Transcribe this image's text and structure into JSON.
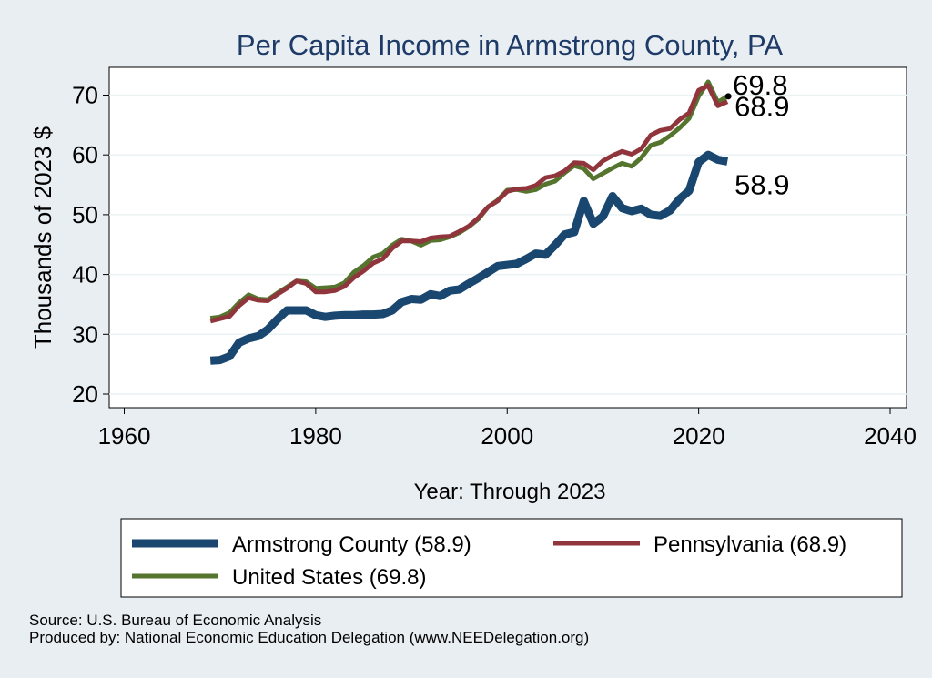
{
  "chart_data": {
    "type": "line",
    "title": "Per Capita Income in Armstrong County, PA",
    "xlabel": "Year: Through 2023",
    "ylabel": "Thousands of 2023 $",
    "xlim": [
      1960,
      2040
    ],
    "ylim": [
      20,
      75
    ],
    "x_ticks": [
      1960,
      1980,
      2000,
      2020,
      2040
    ],
    "y_ticks": [
      20,
      30,
      40,
      50,
      60,
      70
    ],
    "grid": "horizontal",
    "legend_position": "bottom",
    "x": [
      1969,
      1970,
      1971,
      1972,
      1973,
      1974,
      1975,
      1976,
      1977,
      1978,
      1979,
      1980,
      1981,
      1982,
      1983,
      1984,
      1985,
      1986,
      1987,
      1988,
      1989,
      1990,
      1991,
      1992,
      1993,
      1994,
      1995,
      1996,
      1997,
      1998,
      1999,
      2000,
      2001,
      2002,
      2003,
      2004,
      2005,
      2006,
      2007,
      2008,
      2009,
      2010,
      2011,
      2012,
      2013,
      2014,
      2015,
      2016,
      2017,
      2018,
      2019,
      2020,
      2021,
      2022,
      2023
    ],
    "series": [
      {
        "name": "Armstrong County (58.9)",
        "color": "#1a476f",
        "values": [
          25.6,
          25.7,
          26.3,
          28.6,
          29.3,
          29.7,
          30.8,
          32.5,
          34.0,
          34.0,
          34.0,
          33.2,
          32.9,
          33.1,
          33.2,
          33.2,
          33.3,
          33.3,
          33.4,
          34.0,
          35.4,
          35.9,
          35.8,
          36.7,
          36.4,
          37.3,
          37.5,
          38.5,
          39.4,
          40.4,
          41.4,
          41.6,
          41.8,
          42.6,
          43.5,
          43.3,
          44.9,
          46.7,
          47.1,
          52.3,
          48.5,
          49.7,
          53.1,
          51.1,
          50.6,
          51.0,
          50.0,
          49.8,
          50.7,
          52.6,
          54.0,
          58.8,
          60.0,
          59.2,
          58.9
        ],
        "end_label": "58.9"
      },
      {
        "name": "Pennsylvania (68.9)",
        "color": "#90353b",
        "values": [
          32.2,
          32.6,
          33.0,
          34.8,
          36.1,
          35.7,
          35.6,
          36.7,
          37.7,
          38.9,
          38.5,
          37.1,
          37.1,
          37.3,
          38.0,
          39.5,
          40.6,
          41.9,
          42.6,
          44.4,
          45.6,
          45.6,
          45.5,
          46.1,
          46.3,
          46.4,
          47.2,
          48.1,
          49.5,
          51.3,
          52.3,
          53.9,
          54.3,
          54.4,
          54.9,
          56.2,
          56.5,
          57.3,
          58.7,
          58.6,
          57.5,
          59.0,
          59.9,
          60.6,
          60.1,
          61.0,
          63.3,
          64.1,
          64.4,
          65.9,
          67.0,
          70.8,
          71.6,
          68.2,
          68.9
        ],
        "end_label": "68.9"
      },
      {
        "name": "United States (69.8)",
        "color": "#55752f",
        "values": [
          32.7,
          32.9,
          33.6,
          35.3,
          36.6,
          35.9,
          35.8,
          36.9,
          37.9,
          38.9,
          38.8,
          37.7,
          37.8,
          37.9,
          38.6,
          40.4,
          41.5,
          42.9,
          43.5,
          44.9,
          45.9,
          45.6,
          44.9,
          45.7,
          45.8,
          46.3,
          47.0,
          48.0,
          49.3,
          51.3,
          52.4,
          54.1,
          54.2,
          53.9,
          54.2,
          55.1,
          55.6,
          57.0,
          58.2,
          57.7,
          56.0,
          56.9,
          57.8,
          58.6,
          58.1,
          59.5,
          61.6,
          62.1,
          63.2,
          64.5,
          66.1,
          69.8,
          72.2,
          68.8,
          69.8
        ],
        "end_label": "69.8"
      }
    ]
  },
  "notes": {
    "source": "Source: U.S. Bureau of Economic Analysis",
    "produced": "Produced by: National Economic Education Delegation (www.NEEDelegation.org)"
  }
}
